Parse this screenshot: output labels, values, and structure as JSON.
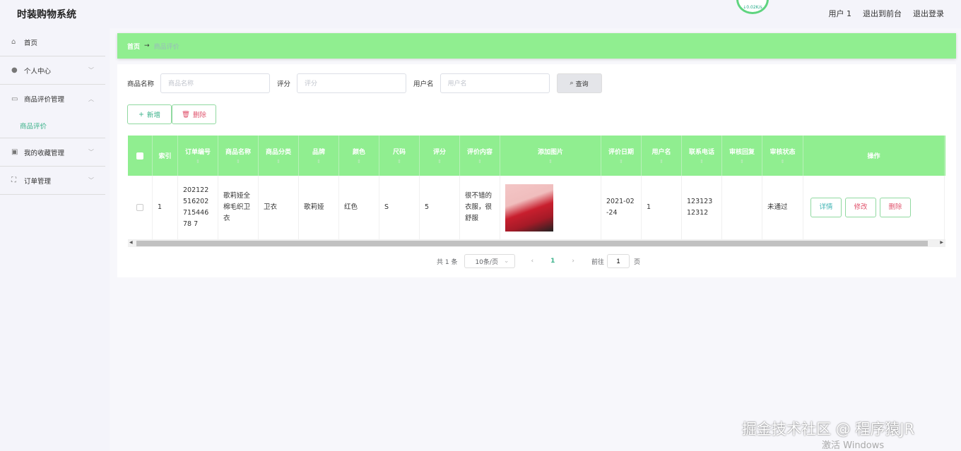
{
  "app": {
    "title": "时装购物系统",
    "net_speed": "↓0.02K/s"
  },
  "header": {
    "user": "用户 1",
    "to_front": "退出到前台",
    "logout": "退出登录"
  },
  "sidebar": {
    "items": [
      {
        "label": "首页",
        "icon": "home-icon"
      },
      {
        "label": "个人中心",
        "icon": "user-icon"
      },
      {
        "label": "商品评价管理",
        "icon": "card-icon",
        "sub": [
          "商品评价"
        ]
      },
      {
        "label": "我的收藏管理",
        "icon": "clipboard-icon"
      },
      {
        "label": "订单管理",
        "icon": "frame-icon"
      }
    ]
  },
  "breadcrumb": {
    "home": "首页",
    "arrow": "→",
    "current": "商品评价"
  },
  "search": {
    "product_label": "商品名称",
    "product_placeholder": "商品名称",
    "rating_label": "评分",
    "rating_placeholder": "评分",
    "user_label": "用户名",
    "user_placeholder": "用户名",
    "query_label": "查询"
  },
  "toolbar": {
    "add_label": "新增",
    "delete_label": "删除"
  },
  "table": {
    "headers": [
      "索引",
      "订单编号",
      "商品名称",
      "商品分类",
      "品牌",
      "颜色",
      "尺码",
      "评分",
      "评价内容",
      "添加图片",
      "评价日期",
      "用户名",
      "联系电话",
      "审核回复",
      "审核状态",
      "操作"
    ],
    "rows": [
      {
        "index": "1",
        "order_no": "20212251620271544678 7",
        "product": "歌莉娅全棉毛织卫衣",
        "category": "卫衣",
        "brand": "歌莉娅",
        "color": "红色",
        "size": "S",
        "rating": "5",
        "content": "很不错的衣服，很舒服",
        "date": "2021-02-24",
        "username": "1",
        "phone": "12312312312",
        "reply": "",
        "status": "未通过"
      }
    ],
    "ops": {
      "detail": "详情",
      "edit": "修改",
      "delete": "删除"
    }
  },
  "pagination": {
    "total": "共 1 条",
    "page_size": "10条/页",
    "current": "1",
    "goto_label": "前往",
    "goto_value": "1",
    "page_suffix": "页"
  },
  "watermark": {
    "text": "掘金技术社区 @ 程序猿JR",
    "windows": "激活 Windows"
  },
  "colors": {
    "accent": "#90ee90",
    "primary_text": "#3bb28a",
    "danger": "#e0556e"
  }
}
